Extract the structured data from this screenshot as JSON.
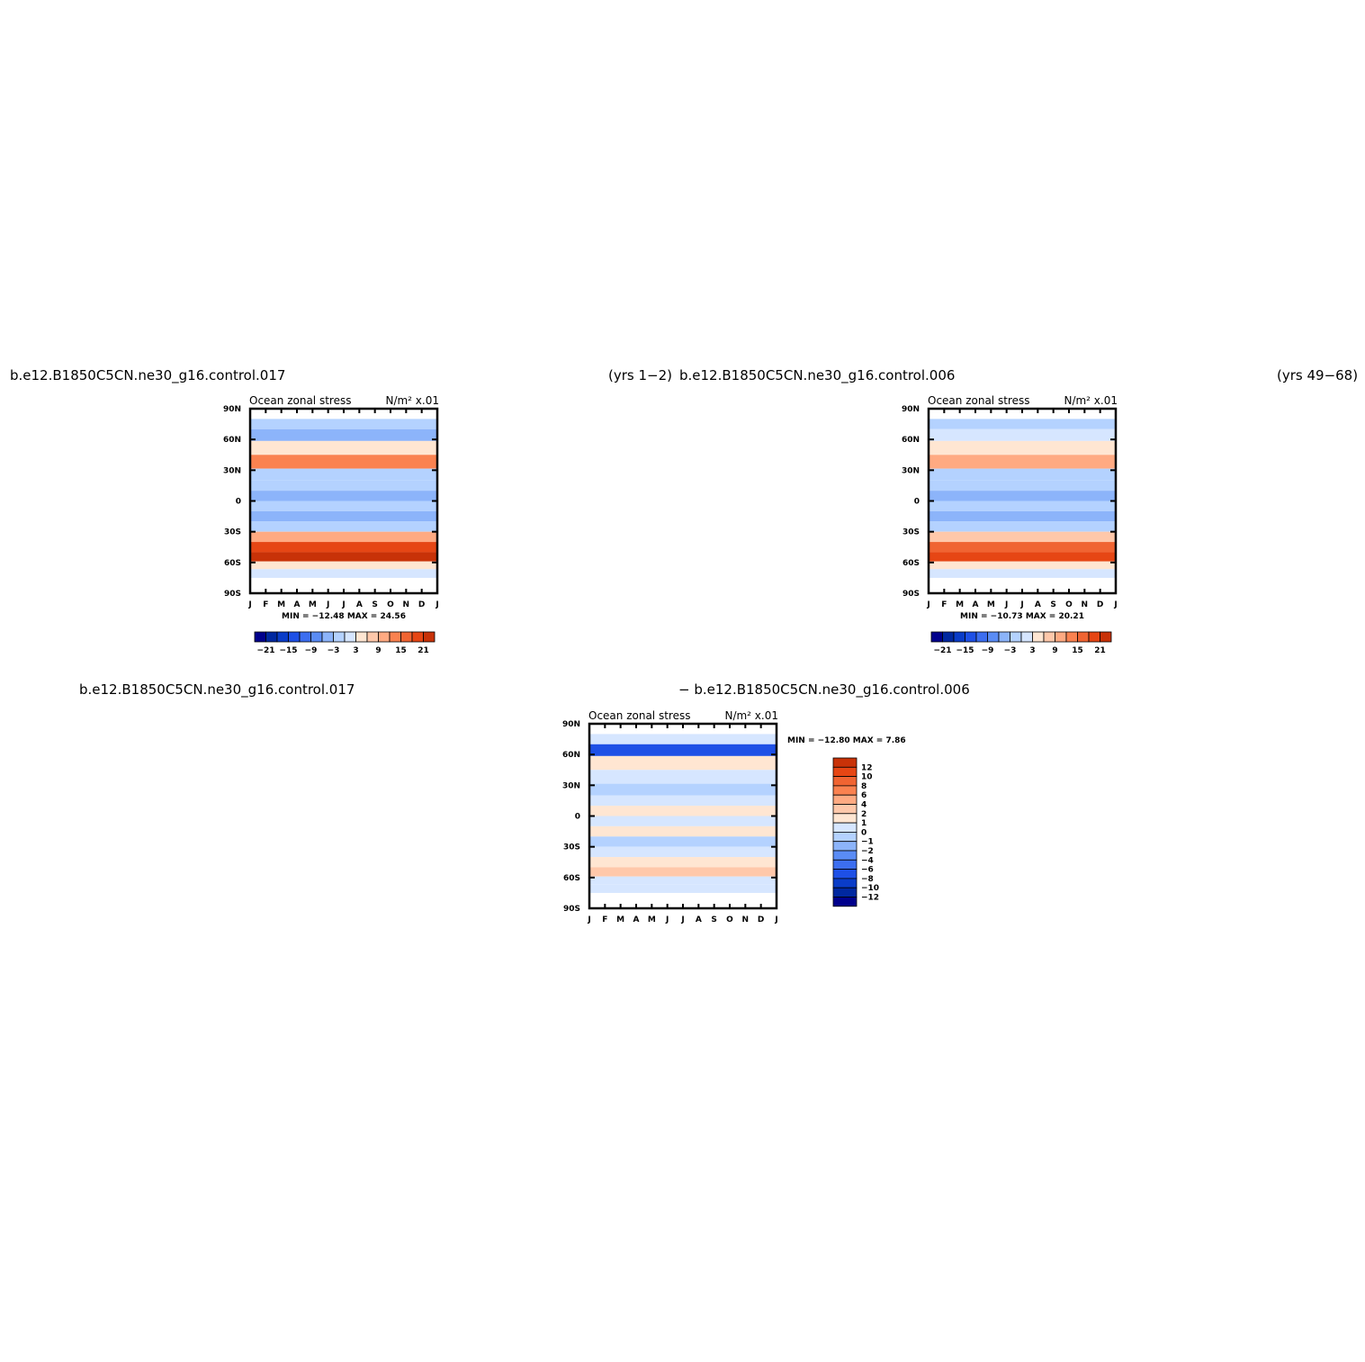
{
  "headers": {
    "top_left_case": "b.e12.B1850C5CN.ne30_g16.control.017",
    "top_left_years": "(yrs  1−2)",
    "top_right_case": "b.e12.B1850C5CN.ne30_g16.control.006",
    "top_right_years": "(yrs  49−68)",
    "bottom_case_a": "b.e12.B1850C5CN.ne30_g16.control.017",
    "bottom_case_b": "−  b.e12.B1850C5CN.ne30_g16.control.006"
  },
  "common": {
    "x_tick_labels": [
      "J",
      "F",
      "M",
      "A",
      "M",
      "J",
      "J",
      "A",
      "S",
      "O",
      "N",
      "D",
      "J"
    ],
    "y_tick_labels": [
      "90N",
      "60N",
      "30N",
      "0",
      "30S",
      "60S",
      "90S"
    ],
    "colors": {
      "blues": [
        "#00008c",
        "#0028a0",
        "#0a3cc8",
        "#1e50e6",
        "#3c6ef0",
        "#5a8cf5",
        "#8cb4fa",
        "#b4d2ff",
        "#d6e6ff"
      ],
      "reds": [
        "#ffe6d2",
        "#ffc8aa",
        "#ffaa82",
        "#fa8250",
        "#f06432",
        "#e64614",
        "#c83208",
        "#a01e00",
        "#780000"
      ]
    }
  },
  "chart_data": [
    {
      "type": "heatmap",
      "title": "Ocean zonal stress",
      "units": "N/m² x.01",
      "stats": "MIN = −12.48  MAX =  24.56",
      "x": [
        "J",
        "F",
        "M",
        "A",
        "M",
        "J",
        "J",
        "A",
        "S",
        "O",
        "N",
        "D",
        "J"
      ],
      "ylim": [
        "90S",
        "90N"
      ],
      "colorbar": {
        "orientation": "horizontal",
        "levels": [
          -24,
          -21,
          -18,
          -15,
          -12,
          -9,
          -6,
          -3,
          0,
          3,
          6,
          9,
          12,
          15,
          18,
          21,
          24
        ],
        "tick_labels": [
          "−21",
          "−15",
          "−9",
          "−3",
          "3",
          "9",
          "15",
          "21"
        ]
      },
      "bands_lat_value": [
        [
          75,
          -3
        ],
        [
          65,
          -6
        ],
        [
          52,
          3
        ],
        [
          38,
          12
        ],
        [
          25,
          -1
        ],
        [
          15,
          -3
        ],
        [
          5,
          -6
        ],
        [
          -5,
          -1
        ],
        [
          -15,
          -6
        ],
        [
          -25,
          -3
        ],
        [
          -35,
          9
        ],
        [
          -45,
          18
        ],
        [
          -55,
          21
        ],
        [
          -63,
          3
        ],
        [
          -70,
          0
        ]
      ]
    },
    {
      "type": "heatmap",
      "title": "Ocean zonal stress",
      "units": "N/m² x.01",
      "stats": "MIN = −10.73  MAX =  20.21",
      "x": [
        "J",
        "F",
        "M",
        "A",
        "M",
        "J",
        "J",
        "A",
        "S",
        "O",
        "N",
        "D",
        "J"
      ],
      "ylim": [
        "90S",
        "90N"
      ],
      "colorbar": {
        "orientation": "horizontal",
        "levels": [
          -24,
          -21,
          -18,
          -15,
          -12,
          -9,
          -6,
          -3,
          0,
          3,
          6,
          9,
          12,
          15,
          18,
          21,
          24
        ],
        "tick_labels": [
          "−21",
          "−15",
          "−9",
          "−3",
          "3",
          "9",
          "15",
          "21"
        ]
      },
      "bands_lat_value": [
        [
          75,
          -3
        ],
        [
          65,
          0
        ],
        [
          52,
          3
        ],
        [
          38,
          9
        ],
        [
          25,
          -1
        ],
        [
          15,
          -3
        ],
        [
          5,
          -6
        ],
        [
          -5,
          -1
        ],
        [
          -15,
          -6
        ],
        [
          -25,
          -3
        ],
        [
          -35,
          6
        ],
        [
          -45,
          15
        ],
        [
          -55,
          18
        ],
        [
          -63,
          3
        ],
        [
          -70,
          0
        ]
      ]
    },
    {
      "type": "heatmap",
      "title": "Ocean zonal stress",
      "units": "N/m² x.01",
      "stats": "MIN = −12.80  MAX =   7.86",
      "x": [
        "J",
        "F",
        "M",
        "A",
        "M",
        "J",
        "J",
        "A",
        "S",
        "O",
        "N",
        "D",
        "J"
      ],
      "ylim": [
        "90S",
        "90N"
      ],
      "colorbar": {
        "orientation": "vertical",
        "levels": [
          -14,
          -12,
          -10,
          -8,
          -6,
          -4,
          -2,
          -1,
          0,
          1,
          2,
          4,
          6,
          8,
          10,
          12,
          14
        ],
        "tick_labels": [
          "12",
          "10",
          "8",
          "6",
          "4",
          "2",
          "1",
          "0",
          "−1",
          "−2",
          "−4",
          "−6",
          "−8",
          "−10",
          "−12"
        ]
      },
      "bands_lat_value": [
        [
          75,
          0
        ],
        [
          65,
          -8
        ],
        [
          52,
          1
        ],
        [
          38,
          0
        ],
        [
          25,
          -1
        ],
        [
          15,
          0
        ],
        [
          5,
          1
        ],
        [
          -5,
          0
        ],
        [
          -15,
          1
        ],
        [
          -25,
          -1
        ],
        [
          -35,
          0
        ],
        [
          -45,
          1
        ],
        [
          -55,
          2
        ],
        [
          -63,
          0
        ],
        [
          -70,
          0
        ]
      ]
    }
  ]
}
